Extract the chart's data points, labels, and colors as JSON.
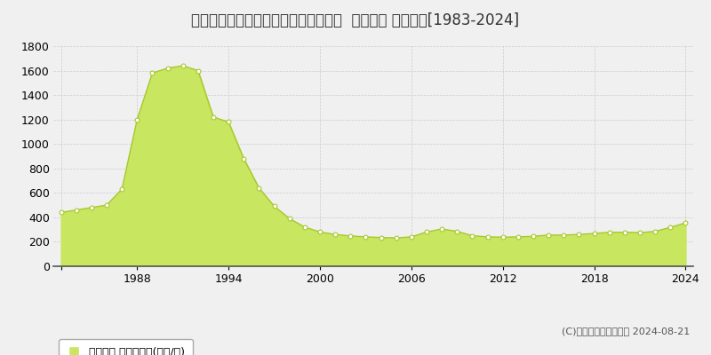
{
  "title": "東京都大田区大森北１丁目３０番６外  地価公示 地価推移[1983-2024]",
  "years": [
    1983,
    1984,
    1985,
    1986,
    1987,
    1988,
    1989,
    1990,
    1991,
    1992,
    1993,
    1994,
    1995,
    1996,
    1997,
    1998,
    1999,
    2000,
    2001,
    2002,
    2003,
    2004,
    2005,
    2006,
    2007,
    2008,
    2009,
    2010,
    2011,
    2012,
    2013,
    2014,
    2015,
    2016,
    2017,
    2018,
    2019,
    2020,
    2021,
    2022,
    2023,
    2024
  ],
  "values": [
    440,
    460,
    480,
    500,
    630,
    1200,
    1580,
    1620,
    1640,
    1600,
    1220,
    1180,
    880,
    640,
    490,
    390,
    320,
    280,
    260,
    248,
    240,
    235,
    232,
    240,
    280,
    305,
    285,
    250,
    240,
    238,
    240,
    245,
    255,
    255,
    260,
    268,
    278,
    278,
    275,
    285,
    318,
    355
  ],
  "fill_color": "#c8e660",
  "line_color": "#a8c830",
  "marker_color": "#ffffff",
  "marker_edge_color": "#a8c830",
  "background_color": "#f0f0f0",
  "plot_bg_color": "#f0f0f0",
  "grid_color": "#cccccc",
  "ylim": [
    0,
    1800
  ],
  "yticks": [
    0,
    200,
    400,
    600,
    800,
    1000,
    1200,
    1400,
    1600,
    1800
  ],
  "xticks": [
    1983,
    1988,
    1994,
    2000,
    2006,
    2012,
    2018,
    2024
  ],
  "xtick_labels": [
    "",
    "1988",
    "1994",
    "2000",
    "2006",
    "2012",
    "2018",
    "2024"
  ],
  "legend_label": "地価公示 平均坪単価(万円/坪)",
  "copyright_text": "(C)土地価格ドットコム 2024-08-21",
  "title_fontsize": 12,
  "axis_fontsize": 9,
  "legend_fontsize": 9,
  "copyright_fontsize": 8
}
